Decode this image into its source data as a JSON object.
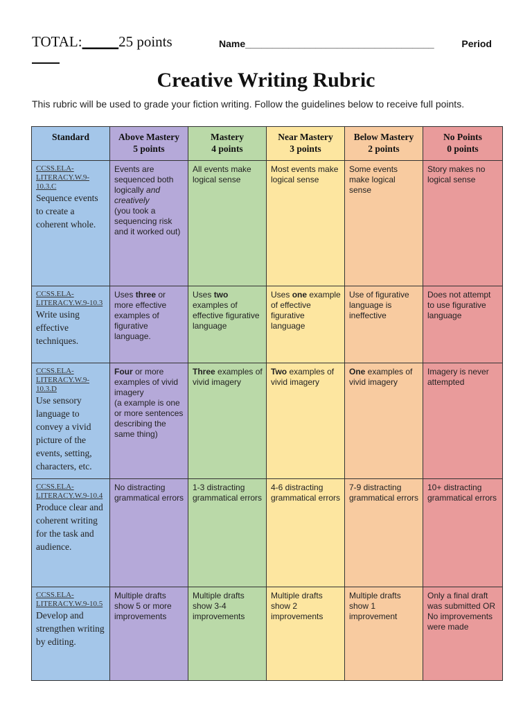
{
  "header": {
    "total_label": "TOTAL:",
    "total_blank": "_____",
    "total_points": "25 points",
    "name_label": "Name___________________________________",
    "period_label": "Period"
  },
  "title": "Creative Writing Rubric",
  "intro": "This rubric will be used to grade your fiction writing. Follow the guidelines below to receive full points.",
  "columns": [
    {
      "name": "Standard",
      "points": ""
    },
    {
      "name": "Above Mastery",
      "points": "5 points"
    },
    {
      "name": "Mastery",
      "points": "4 points"
    },
    {
      "name": "Near Mastery",
      "points": "3 points"
    },
    {
      "name": "Below Mastery",
      "points": "2 points"
    },
    {
      "name": "No Points",
      "points": "0 points"
    }
  ],
  "rows": [
    {
      "code": "CCSS.ELA-LITERACY.W.9-10.3.C",
      "desc": "Sequence events to create a coherent whole.",
      "above": {
        "a": "Events are sequenced both logically ",
        "b": "",
        "c": "",
        "d": "and creatively",
        "e": "(you took a sequencing risk and it worked out)"
      },
      "mastery": {
        "pre": "",
        "bold": "",
        "post": "All events make logical sense"
      },
      "near": {
        "pre": "",
        "bold": "",
        "post": "Most events make logical sense"
      },
      "below": {
        "pre": "",
        "bold": "",
        "post": "Some events make logical sense"
      },
      "none": "Story makes no logical sense"
    },
    {
      "code": "CCSS.ELA-LITERACY.W.9-10.3",
      "desc": "Write using effective techniques.",
      "above": {
        "a": "Uses ",
        "b": "three",
        "c": " or more effective examples of figurative language.",
        "d": "",
        "e": ""
      },
      "mastery": {
        "pre": "Uses ",
        "bold": "two",
        "post": " examples of effective figurative language"
      },
      "near": {
        "pre": "Uses ",
        "bold": "one",
        "post": " example of effective figurative language"
      },
      "below": {
        "pre": "",
        "bold": "",
        "post": "Use of figurative language is ineffective"
      },
      "none": "Does not attempt to use figurative language"
    },
    {
      "code": "CCSS.ELA-LITERACY.W.9-10.3.D",
      "desc": "Use sensory language to convey a vivid picture of the events, setting, characters, etc.",
      "above": {
        "a": "",
        "b": "Four",
        "c": " or more examples of vivid imagery",
        "d": "",
        "e": "(a example is one or more sentences describing the same thing)"
      },
      "mastery": {
        "pre": "",
        "bold": "Three",
        "post": " examples of vivid imagery"
      },
      "near": {
        "pre": "",
        "bold": "Two",
        "post": " examples of vivid imagery"
      },
      "below": {
        "pre": "",
        "bold": "One",
        "post": " examples of vivid imagery"
      },
      "none": "Imagery is never attempted"
    },
    {
      "code": "CCSS.ELA-LITERACY.W.9-10.4",
      "desc": "Produce clear and coherent writing for the task and audience.",
      "above": {
        "a": "No distracting grammatical errors",
        "b": "",
        "c": "",
        "d": "",
        "e": ""
      },
      "mastery": {
        "pre": "",
        "bold": "",
        "post": "1-3 distracting grammatical errors"
      },
      "near": {
        "pre": "",
        "bold": "",
        "post": "4-6 distracting grammatical errors"
      },
      "below": {
        "pre": "",
        "bold": "",
        "post": "7-9 distracting grammatical errors"
      },
      "none": "10+ distracting grammatical errors"
    },
    {
      "code": "CCSS.ELA-LITERACY.W.9-10.5",
      "desc": "Develop and strengthen writing by editing.",
      "above": {
        "a": "Multiple drafts show 5 or more improvements",
        "b": "",
        "c": "",
        "d": "",
        "e": ""
      },
      "mastery": {
        "pre": "",
        "bold": "",
        "post": "Multiple drafts show 3-4 improvements"
      },
      "near": {
        "pre": "",
        "bold": "",
        "post": "Multiple drafts show 2 improvements"
      },
      "below": {
        "pre": "",
        "bold": "",
        "post": "Multiple drafts show 1 improvement"
      },
      "none": "Only a final draft was submitted OR No improvements were made"
    }
  ]
}
